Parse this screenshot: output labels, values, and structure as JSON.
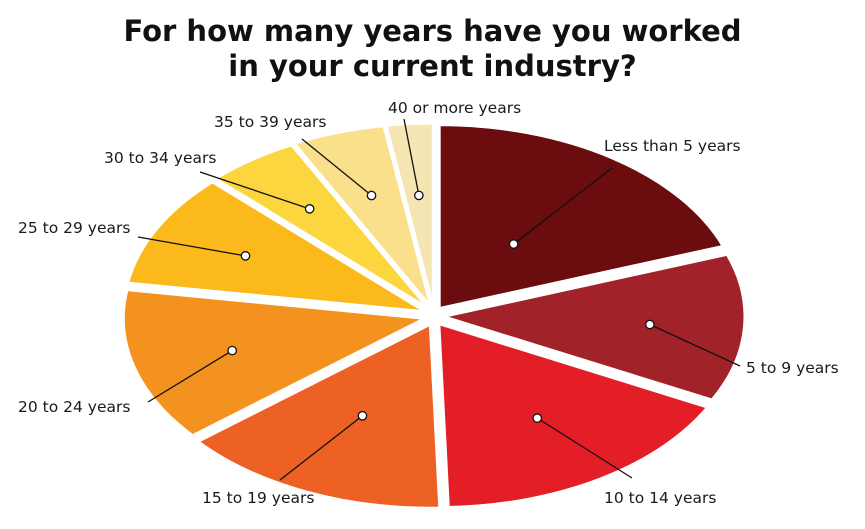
{
  "chart_data": {
    "type": "pie",
    "title_lines": [
      "For how many years have you worked",
      "in your current industry?"
    ],
    "categories": [
      "Less than 5 years",
      "5 to 9 years",
      "10 to 14 years",
      "15 to 19 years",
      "20 to 24 years",
      "25 to 29 years",
      "30 to 34 years",
      "35 to 39 years",
      "40 or more years"
    ],
    "values": [
      19.5,
      13,
      17,
      14.5,
      13.5,
      10,
      5,
      5,
      2.5
    ],
    "unit": "%",
    "colors": [
      "#6b0c0e",
      "#a12329",
      "#e31e26",
      "#ee6124",
      "#f4921f",
      "#fbb91b",
      "#fcd63e",
      "#fbe08c",
      "#f5e5b3"
    ],
    "value_labels_shown": false,
    "legend": "none"
  }
}
